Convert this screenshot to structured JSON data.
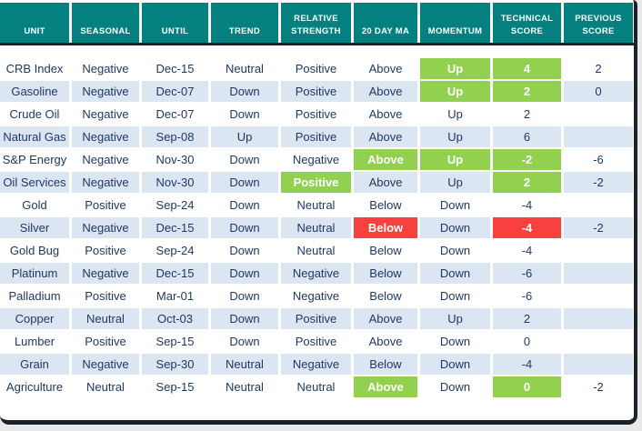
{
  "colors": {
    "teal": "#058080",
    "green": "#92d050",
    "red": "#f94040",
    "alt_row": "#dce6f2",
    "text": "#1f3864",
    "frame_border": "#1c222c",
    "page_bg": "#e9e9e9"
  },
  "table": {
    "columns": [
      {
        "key": "unit",
        "label": "UNIT"
      },
      {
        "key": "seasonal",
        "label": "SEASONAL"
      },
      {
        "key": "until",
        "label": "UNTIL"
      },
      {
        "key": "trend",
        "label": "TREND"
      },
      {
        "key": "relative_strength",
        "label": "RELATIVE\nSTRENGTH"
      },
      {
        "key": "ma20",
        "label": "20 DAY MA"
      },
      {
        "key": "momentum",
        "label": "MOMENTUM"
      },
      {
        "key": "technical_score",
        "label": "TECHNICAL\nSCORE"
      },
      {
        "key": "previous_score",
        "label": "PREVIOUS\nSCORE"
      }
    ],
    "rows": [
      {
        "cells": {
          "unit": "CRB Index",
          "seasonal": "Negative",
          "until": "Dec-15",
          "trend": "Neutral",
          "relative_strength": "Positive",
          "ma20": "Above",
          "momentum": "Up",
          "technical_score": "4",
          "previous_score": "2"
        },
        "highlights": {
          "momentum": "green",
          "technical_score": "green"
        }
      },
      {
        "cells": {
          "unit": "Gasoline",
          "seasonal": "Negative",
          "until": "Dec-07",
          "trend": "Down",
          "relative_strength": "Positive",
          "ma20": "Above",
          "momentum": "Up",
          "technical_score": "2",
          "previous_score": "0"
        },
        "highlights": {
          "momentum": "green",
          "technical_score": "green"
        }
      },
      {
        "cells": {
          "unit": "Crude Oil",
          "seasonal": "Negative",
          "until": "Dec-07",
          "trend": "Down",
          "relative_strength": "Positive",
          "ma20": "Above",
          "momentum": "Up",
          "technical_score": "2",
          "previous_score": ""
        },
        "highlights": {}
      },
      {
        "cells": {
          "unit": "Natural Gas",
          "seasonal": "Negative",
          "until": "Sep-08",
          "trend": "Up",
          "relative_strength": "Positive",
          "ma20": "Above",
          "momentum": "Up",
          "technical_score": "6",
          "previous_score": ""
        },
        "highlights": {}
      },
      {
        "cells": {
          "unit": "S&P Energy",
          "seasonal": "Negative",
          "until": "Nov-30",
          "trend": "Down",
          "relative_strength": "Negative",
          "ma20": "Above",
          "momentum": "Up",
          "technical_score": "-2",
          "previous_score": "-6"
        },
        "highlights": {
          "ma20": "green",
          "momentum": "green",
          "technical_score": "green"
        }
      },
      {
        "cells": {
          "unit": "Oil Services",
          "seasonal": "Negative",
          "until": "Nov-30",
          "trend": "Down",
          "relative_strength": "Positive",
          "ma20": "Above",
          "momentum": "Up",
          "technical_score": "2",
          "previous_score": "-2"
        },
        "highlights": {
          "relative_strength": "green",
          "technical_score": "green"
        }
      },
      {
        "cells": {
          "unit": "Gold",
          "seasonal": "Positive",
          "until": "Sep-24",
          "trend": "Down",
          "relative_strength": "Neutral",
          "ma20": "Below",
          "momentum": "Down",
          "technical_score": "-4",
          "previous_score": ""
        },
        "highlights": {}
      },
      {
        "cells": {
          "unit": "Silver",
          "seasonal": "Negative",
          "until": "Dec-15",
          "trend": "Down",
          "relative_strength": "Neutral",
          "ma20": "Below",
          "momentum": "Down",
          "technical_score": "-4",
          "previous_score": "-2"
        },
        "highlights": {
          "ma20": "red",
          "technical_score": "red"
        }
      },
      {
        "cells": {
          "unit": "Gold Bug",
          "seasonal": "Positive",
          "until": "Sep-24",
          "trend": "Down",
          "relative_strength": "Neutral",
          "ma20": "Below",
          "momentum": "Down",
          "technical_score": "-4",
          "previous_score": ""
        },
        "highlights": {}
      },
      {
        "cells": {
          "unit": "Platinum",
          "seasonal": "Negative",
          "until": "Dec-15",
          "trend": "Down",
          "relative_strength": "Negative",
          "ma20": "Below",
          "momentum": "Down",
          "technical_score": "-6",
          "previous_score": ""
        },
        "highlights": {}
      },
      {
        "cells": {
          "unit": "Palladium",
          "seasonal": "Positive",
          "until": "Mar-01",
          "trend": "Down",
          "relative_strength": "Negative",
          "ma20": "Below",
          "momentum": "Down",
          "technical_score": "-6",
          "previous_score": ""
        },
        "highlights": {}
      },
      {
        "cells": {
          "unit": "Copper",
          "seasonal": "Neutral",
          "until": "Oct-03",
          "trend": "Down",
          "relative_strength": "Positive",
          "ma20": "Above",
          "momentum": "Up",
          "technical_score": "2",
          "previous_score": ""
        },
        "highlights": {}
      },
      {
        "cells": {
          "unit": "Lumber",
          "seasonal": "Positive",
          "until": "Sep-15",
          "trend": "Down",
          "relative_strength": "Positive",
          "ma20": "Above",
          "momentum": "Down",
          "technical_score": "0",
          "previous_score": ""
        },
        "highlights": {}
      },
      {
        "cells": {
          "unit": "Grain",
          "seasonal": "Negative",
          "until": "Sep-30",
          "trend": "Neutral",
          "relative_strength": "Negative",
          "ma20": "Below",
          "momentum": "Down",
          "technical_score": "-4",
          "previous_score": ""
        },
        "highlights": {}
      },
      {
        "cells": {
          "unit": "Agriculture",
          "seasonal": "Neutral",
          "until": "Sep-15",
          "trend": "Neutral",
          "relative_strength": "Neutral",
          "ma20": "Above",
          "momentum": "Down",
          "technical_score": "0",
          "previous_score": "-2"
        },
        "highlights": {
          "ma20": "green",
          "technical_score": "green"
        }
      }
    ]
  }
}
